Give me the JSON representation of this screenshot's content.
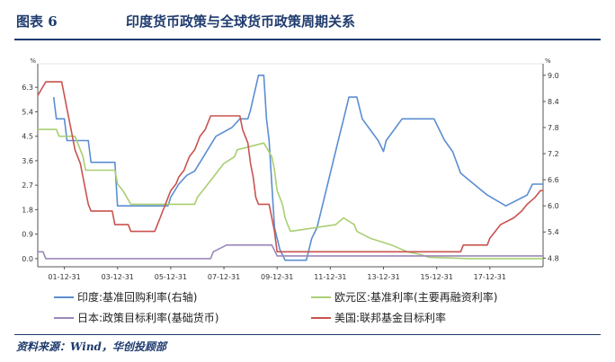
{
  "header": {
    "figure_number": "图表 6",
    "title": "印度货币政策与全球货币政策周期关系"
  },
  "source": "资料来源：Wind，华创投顾部",
  "chart_data": {
    "type": "line",
    "left_axis": {
      "unit": "%",
      "range": [
        -0.3,
        6.9
      ],
      "ticks": [
        "0.0",
        "0.9",
        "1.8",
        "2.7",
        "3.6",
        "4.5",
        "5.4",
        "6.3"
      ]
    },
    "right_axis": {
      "unit": "%",
      "range": [
        4.6,
        9.1
      ],
      "ticks": [
        "4.8",
        "5.4",
        "6.0",
        "6.6",
        "7.2",
        "7.8",
        "8.4",
        "9.0"
      ]
    },
    "x_range": [
      2000.0,
      2019.0
    ],
    "x_ticks": [
      {
        "label": "01-12-31",
        "x": 2001.0
      },
      {
        "label": "03-12-31",
        "x": 2003.0
      },
      {
        "label": "05-12-31",
        "x": 2005.0
      },
      {
        "label": "07-12-31",
        "x": 2007.0
      },
      {
        "label": "09-12-31",
        "x": 2009.0
      },
      {
        "label": "11-12-31",
        "x": 2011.0
      },
      {
        "label": "13-12-31",
        "x": 2013.0
      },
      {
        "label": "15-12-31",
        "x": 2015.0
      },
      {
        "label": "17-12-31",
        "x": 2017.0
      }
    ],
    "grid": false,
    "legend_position": "bottom",
    "series": [
      {
        "name": "印度:基准回购利率(右轴)",
        "axis": "right",
        "color": "#5b8ed1",
        "points": [
          [
            2000.6,
            8.5
          ],
          [
            2000.7,
            8.0
          ],
          [
            2001.0,
            8.0
          ],
          [
            2001.1,
            7.5
          ],
          [
            2001.9,
            7.5
          ],
          [
            2002.0,
            7.0
          ],
          [
            2002.9,
            7.0
          ],
          [
            2003.0,
            6.0
          ],
          [
            2004.9,
            6.0
          ],
          [
            2005.0,
            6.2
          ],
          [
            2005.3,
            6.5
          ],
          [
            2005.6,
            6.7
          ],
          [
            2005.9,
            6.8
          ],
          [
            2006.2,
            7.1
          ],
          [
            2006.4,
            7.3
          ],
          [
            2006.7,
            7.6
          ],
          [
            2007.0,
            7.7
          ],
          [
            2007.3,
            7.8
          ],
          [
            2007.6,
            8.0
          ],
          [
            2007.9,
            8.0
          ],
          [
            2008.0,
            8.2
          ],
          [
            2008.3,
            9.0
          ],
          [
            2008.5,
            9.0
          ],
          [
            2008.6,
            8.0
          ],
          [
            2008.7,
            7.5
          ],
          [
            2008.8,
            6.5
          ],
          [
            2008.9,
            5.5
          ],
          [
            2009.1,
            5.0
          ],
          [
            2009.3,
            4.75
          ],
          [
            2010.1,
            4.75
          ],
          [
            2010.3,
            5.25
          ],
          [
            2010.5,
            5.5
          ],
          [
            2010.7,
            6.0
          ],
          [
            2010.9,
            6.5
          ],
          [
            2011.1,
            7.0
          ],
          [
            2011.3,
            7.5
          ],
          [
            2011.5,
            8.0
          ],
          [
            2011.7,
            8.5
          ],
          [
            2012.0,
            8.5
          ],
          [
            2012.2,
            8.0
          ],
          [
            2012.5,
            7.75
          ],
          [
            2012.8,
            7.5
          ],
          [
            2013.0,
            7.25
          ],
          [
            2013.1,
            7.5
          ],
          [
            2013.4,
            7.75
          ],
          [
            2013.7,
            8.0
          ],
          [
            2014.9,
            8.0
          ],
          [
            2015.1,
            7.75
          ],
          [
            2015.3,
            7.5
          ],
          [
            2015.6,
            7.25
          ],
          [
            2015.9,
            6.75
          ],
          [
            2016.4,
            6.5
          ],
          [
            2016.9,
            6.25
          ],
          [
            2017.6,
            6.0
          ],
          [
            2018.4,
            6.25
          ],
          [
            2018.6,
            6.5
          ],
          [
            2019.0,
            6.5
          ]
        ]
      },
      {
        "name": "欧元区:基准利率(主要再融资利率)",
        "axis": "left",
        "color": "#a9cf72",
        "points": [
          [
            2000.0,
            4.75
          ],
          [
            2000.7,
            4.75
          ],
          [
            2000.8,
            4.5
          ],
          [
            2001.4,
            4.5
          ],
          [
            2001.5,
            4.25
          ],
          [
            2001.7,
            3.75
          ],
          [
            2001.8,
            3.25
          ],
          [
            2002.9,
            3.25
          ],
          [
            2003.0,
            2.75
          ],
          [
            2003.2,
            2.5
          ],
          [
            2003.5,
            2.0
          ],
          [
            2005.9,
            2.0
          ],
          [
            2006.0,
            2.25
          ],
          [
            2006.2,
            2.5
          ],
          [
            2006.4,
            2.75
          ],
          [
            2006.6,
            3.0
          ],
          [
            2006.8,
            3.25
          ],
          [
            2007.0,
            3.5
          ],
          [
            2007.4,
            3.75
          ],
          [
            2007.5,
            4.0
          ],
          [
            2008.5,
            4.25
          ],
          [
            2008.8,
            3.75
          ],
          [
            2008.9,
            3.25
          ],
          [
            2009.0,
            2.5
          ],
          [
            2009.2,
            2.0
          ],
          [
            2009.3,
            1.5
          ],
          [
            2009.4,
            1.25
          ],
          [
            2009.5,
            1.0
          ],
          [
            2011.2,
            1.25
          ],
          [
            2011.5,
            1.5
          ],
          [
            2011.9,
            1.25
          ],
          [
            2012.0,
            1.0
          ],
          [
            2012.5,
            0.75
          ],
          [
            2013.3,
            0.5
          ],
          [
            2013.9,
            0.25
          ],
          [
            2014.4,
            0.15
          ],
          [
            2014.7,
            0.05
          ],
          [
            2016.2,
            0.0
          ],
          [
            2019.0,
            0.0
          ]
        ]
      },
      {
        "name": "日本:政策目标利率(基础货币)",
        "axis": "left",
        "color": "#9b87b8",
        "points": [
          [
            2000.0,
            0.25
          ],
          [
            2000.2,
            0.25
          ],
          [
            2000.3,
            0.0
          ],
          [
            2006.5,
            0.0
          ],
          [
            2006.6,
            0.25
          ],
          [
            2007.1,
            0.5
          ],
          [
            2008.8,
            0.5
          ],
          [
            2008.9,
            0.3
          ],
          [
            2009.0,
            0.1
          ],
          [
            2019.0,
            0.1
          ]
        ]
      },
      {
        "name": "美国:联邦基金目标利率",
        "axis": "left",
        "color": "#c9534f",
        "points": [
          [
            2000.0,
            6.0
          ],
          [
            2000.3,
            6.5
          ],
          [
            2000.9,
            6.5
          ],
          [
            2001.0,
            6.0
          ],
          [
            2001.1,
            5.5
          ],
          [
            2001.2,
            5.0
          ],
          [
            2001.3,
            4.5
          ],
          [
            2001.4,
            4.0
          ],
          [
            2001.5,
            3.75
          ],
          [
            2001.6,
            3.5
          ],
          [
            2001.7,
            3.0
          ],
          [
            2001.8,
            2.5
          ],
          [
            2001.9,
            2.0
          ],
          [
            2002.0,
            1.75
          ],
          [
            2002.8,
            1.75
          ],
          [
            2002.9,
            1.25
          ],
          [
            2003.4,
            1.25
          ],
          [
            2003.5,
            1.0
          ],
          [
            2004.4,
            1.0
          ],
          [
            2004.5,
            1.25
          ],
          [
            2004.6,
            1.5
          ],
          [
            2004.7,
            1.75
          ],
          [
            2004.8,
            2.0
          ],
          [
            2004.9,
            2.25
          ],
          [
            2005.0,
            2.5
          ],
          [
            2005.2,
            2.75
          ],
          [
            2005.3,
            3.0
          ],
          [
            2005.5,
            3.25
          ],
          [
            2005.6,
            3.5
          ],
          [
            2005.7,
            3.75
          ],
          [
            2005.9,
            4.0
          ],
          [
            2006.0,
            4.25
          ],
          [
            2006.1,
            4.5
          ],
          [
            2006.3,
            4.75
          ],
          [
            2006.4,
            5.0
          ],
          [
            2006.5,
            5.25
          ],
          [
            2007.6,
            5.25
          ],
          [
            2007.7,
            4.75
          ],
          [
            2007.8,
            4.5
          ],
          [
            2007.9,
            4.25
          ],
          [
            2008.0,
            3.5
          ],
          [
            2008.1,
            3.0
          ],
          [
            2008.2,
            2.25
          ],
          [
            2008.3,
            2.0
          ],
          [
            2008.7,
            2.0
          ],
          [
            2008.8,
            1.5
          ],
          [
            2008.9,
            1.0
          ],
          [
            2009.0,
            0.25
          ],
          [
            2015.9,
            0.25
          ],
          [
            2016.0,
            0.5
          ],
          [
            2016.9,
            0.5
          ],
          [
            2017.0,
            0.75
          ],
          [
            2017.2,
            1.0
          ],
          [
            2017.4,
            1.25
          ],
          [
            2017.9,
            1.5
          ],
          [
            2018.2,
            1.75
          ],
          [
            2018.4,
            2.0
          ],
          [
            2018.7,
            2.25
          ],
          [
            2018.9,
            2.5
          ],
          [
            2019.0,
            2.5
          ]
        ]
      }
    ]
  }
}
